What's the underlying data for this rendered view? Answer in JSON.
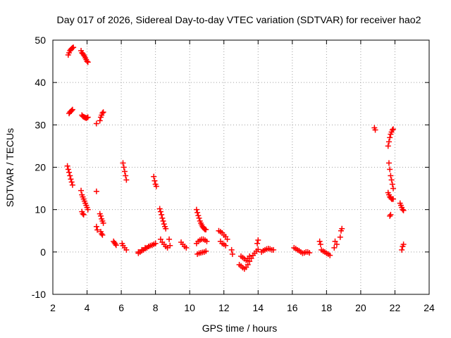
{
  "chart_data": {
    "type": "scatter",
    "title": "Day 017 of 2026, Sidereal Day-to-day VTEC variation (SDTVAR) for receiver hao2",
    "xlabel": "GPS time / hours",
    "ylabel": "SDTVAR / TECUs",
    "xlim": [
      2,
      24
    ],
    "ylim": [
      -10,
      50
    ],
    "x_ticks": [
      2,
      4,
      6,
      8,
      10,
      12,
      14,
      16,
      18,
      20,
      22,
      24
    ],
    "y_ticks": [
      -10,
      0,
      10,
      20,
      30,
      40,
      50
    ],
    "x_tick_labels": [
      "2",
      "4",
      "6",
      "8",
      "10",
      "12",
      "14",
      "16",
      "18",
      "20",
      "22",
      "24"
    ],
    "y_tick_labels": [
      "-10",
      "0",
      "10",
      "20",
      "30",
      "40",
      "50"
    ],
    "grid": true,
    "marker": "+",
    "marker_color": "#ff0000",
    "series": [
      {
        "name": "SDTVAR",
        "x": [
          2.9,
          2.95,
          3.0,
          3.05,
          3.1,
          3.15,
          3.2,
          3.65,
          3.7,
          3.75,
          3.8,
          3.85,
          3.9,
          3.95,
          4.0,
          4.05,
          2.95,
          3.0,
          3.05,
          3.1,
          3.15,
          3.7,
          3.75,
          3.8,
          3.85,
          3.9,
          3.95,
          4.0,
          4.05,
          4.55,
          4.75,
          4.8,
          4.85,
          4.9,
          4.95,
          2.85,
          2.9,
          2.95,
          3.0,
          3.05,
          3.1,
          3.15,
          3.65,
          3.7,
          3.75,
          3.8,
          3.85,
          3.9,
          3.95,
          4.0,
          4.05,
          3.7,
          3.75,
          3.8,
          4.55,
          4.6,
          4.55,
          4.75,
          4.8,
          4.85,
          4.9,
          4.95,
          4.8,
          4.85,
          4.9,
          5.55,
          5.6,
          5.65,
          5.7,
          6.1,
          6.15,
          6.2,
          6.25,
          6.3,
          6.05,
          6.1,
          6.2,
          6.3,
          7.0,
          7.1,
          7.2,
          7.3,
          7.4,
          7.5,
          7.6,
          7.7,
          7.8,
          7.9,
          8.0,
          7.0,
          7.2,
          7.4,
          7.6,
          7.8,
          8.0,
          7.9,
          7.95,
          8.0,
          8.05,
          8.25,
          8.3,
          8.35,
          8.4,
          8.45,
          8.5,
          8.55,
          8.6,
          8.3,
          8.4,
          8.5,
          8.6,
          8.7,
          8.8,
          8.85,
          9.5,
          9.6,
          9.7,
          9.8,
          10.4,
          10.45,
          10.5,
          10.55,
          10.6,
          10.65,
          10.7,
          10.75,
          10.8,
          10.85,
          10.9,
          10.95,
          10.4,
          10.5,
          10.6,
          10.7,
          10.8,
          10.9,
          11.0,
          10.45,
          10.55,
          10.65,
          10.75,
          10.85,
          10.95,
          11.7,
          11.8,
          11.9,
          12.0,
          12.1,
          12.2,
          11.8,
          11.9,
          12.0,
          12.1,
          12.45,
          12.5,
          12.9,
          13.0,
          13.1,
          13.2,
          13.3,
          13.4,
          13.5,
          13.6,
          13.7,
          13.8,
          13.9,
          14.0,
          13.0,
          13.1,
          13.2,
          13.3,
          13.4,
          13.5,
          13.95,
          14.0,
          14.2,
          14.3,
          14.4,
          14.5,
          14.6,
          14.7,
          14.8,
          14.9,
          16.1,
          16.2,
          16.3,
          16.4,
          16.5,
          16.6,
          16.7,
          16.8,
          16.9,
          17.0,
          17.6,
          17.65,
          17.7,
          17.8,
          17.9,
          18.0,
          18.1,
          18.2,
          18.45,
          18.5,
          18.6,
          18.8,
          18.85,
          18.9,
          20.8,
          20.85,
          21.6,
          21.65,
          21.7,
          21.75,
          21.8,
          21.85,
          21.9,
          21.65,
          21.7,
          21.75,
          21.8,
          21.85,
          21.9,
          21.6,
          21.65,
          21.7,
          21.75,
          21.8,
          21.85,
          21.9,
          21.7,
          21.75,
          22.3,
          22.35,
          22.4,
          22.45,
          22.5,
          22.4,
          22.45,
          22.5
        ],
        "y": [
          46.5,
          47.0,
          47.5,
          47.8,
          48.0,
          48.2,
          48.3,
          47.5,
          47.0,
          46.8,
          46.5,
          46.2,
          45.8,
          45.4,
          45.0,
          44.8,
          32.7,
          33.0,
          33.2,
          33.4,
          33.6,
          32.3,
          32.0,
          31.9,
          31.8,
          31.7,
          31.6,
          31.7,
          31.8,
          30.3,
          31.0,
          31.8,
          32.3,
          32.8,
          33.0,
          20.3,
          19.5,
          18.8,
          18.0,
          17.2,
          16.5,
          15.8,
          14.5,
          13.5,
          13.0,
          12.5,
          12.0,
          11.5,
          11.0,
          10.5,
          10.0,
          9.5,
          9.0,
          8.8,
          6.0,
          5.2,
          14.3,
          9.0,
          8.5,
          7.8,
          7.3,
          6.8,
          4.8,
          4.3,
          4.0,
          2.5,
          2.2,
          1.9,
          1.6,
          21.0,
          20.0,
          19.0,
          18.0,
          17.0,
          2.0,
          1.5,
          1.0,
          0.5,
          -0.3,
          0.0,
          0.3,
          0.5,
          0.8,
          1.0,
          1.3,
          1.5,
          1.6,
          1.8,
          2.0,
          0.0,
          0.5,
          1.0,
          1.3,
          1.6,
          2.0,
          17.8,
          16.8,
          16.0,
          15.5,
          10.2,
          9.5,
          8.8,
          8.0,
          7.3,
          6.6,
          6.0,
          5.5,
          3.0,
          2.3,
          1.8,
          1.3,
          1.0,
          3.0,
          1.5,
          2.3,
          1.8,
          1.3,
          1.0,
          10.0,
          9.3,
          8.6,
          8.0,
          7.3,
          6.8,
          6.4,
          6.0,
          5.7,
          5.5,
          5.3,
          5.3,
          2.0,
          2.5,
          2.8,
          3.0,
          3.0,
          2.8,
          2.5,
          -0.5,
          -0.3,
          -0.2,
          -0.1,
          0.0,
          0.2,
          5.0,
          4.8,
          4.5,
          4.0,
          3.6,
          3.0,
          2.5,
          2.0,
          1.8,
          1.5,
          0.5,
          -0.5,
          -3.0,
          -3.3,
          -3.7,
          -4.0,
          -3.6,
          -3.0,
          -2.2,
          -1.5,
          -0.8,
          -0.3,
          0.2,
          0.6,
          -1.0,
          -1.3,
          -1.6,
          -2.0,
          -1.5,
          -1.0,
          2.0,
          2.8,
          0.0,
          0.3,
          0.5,
          0.7,
          0.8,
          0.7,
          0.5,
          0.5,
          1.0,
          0.8,
          0.5,
          0.3,
          0.0,
          -0.3,
          -0.2,
          0.0,
          0.0,
          -0.2,
          2.5,
          1.8,
          0.5,
          0.2,
          0.0,
          -0.3,
          -0.5,
          -0.8,
          1.0,
          2.5,
          1.8,
          3.5,
          5.0,
          5.5,
          29.3,
          28.8,
          25.0,
          26.0,
          27.0,
          27.8,
          28.3,
          28.8,
          29.0,
          21.0,
          19.5,
          18.0,
          17.0,
          16.0,
          15.0,
          14.0,
          13.5,
          13.0,
          12.8,
          12.5,
          12.5,
          12.5,
          8.5,
          8.8,
          11.5,
          11.0,
          10.5,
          10.0,
          9.8,
          0.5,
          1.3,
          1.8
        ]
      }
    ]
  }
}
